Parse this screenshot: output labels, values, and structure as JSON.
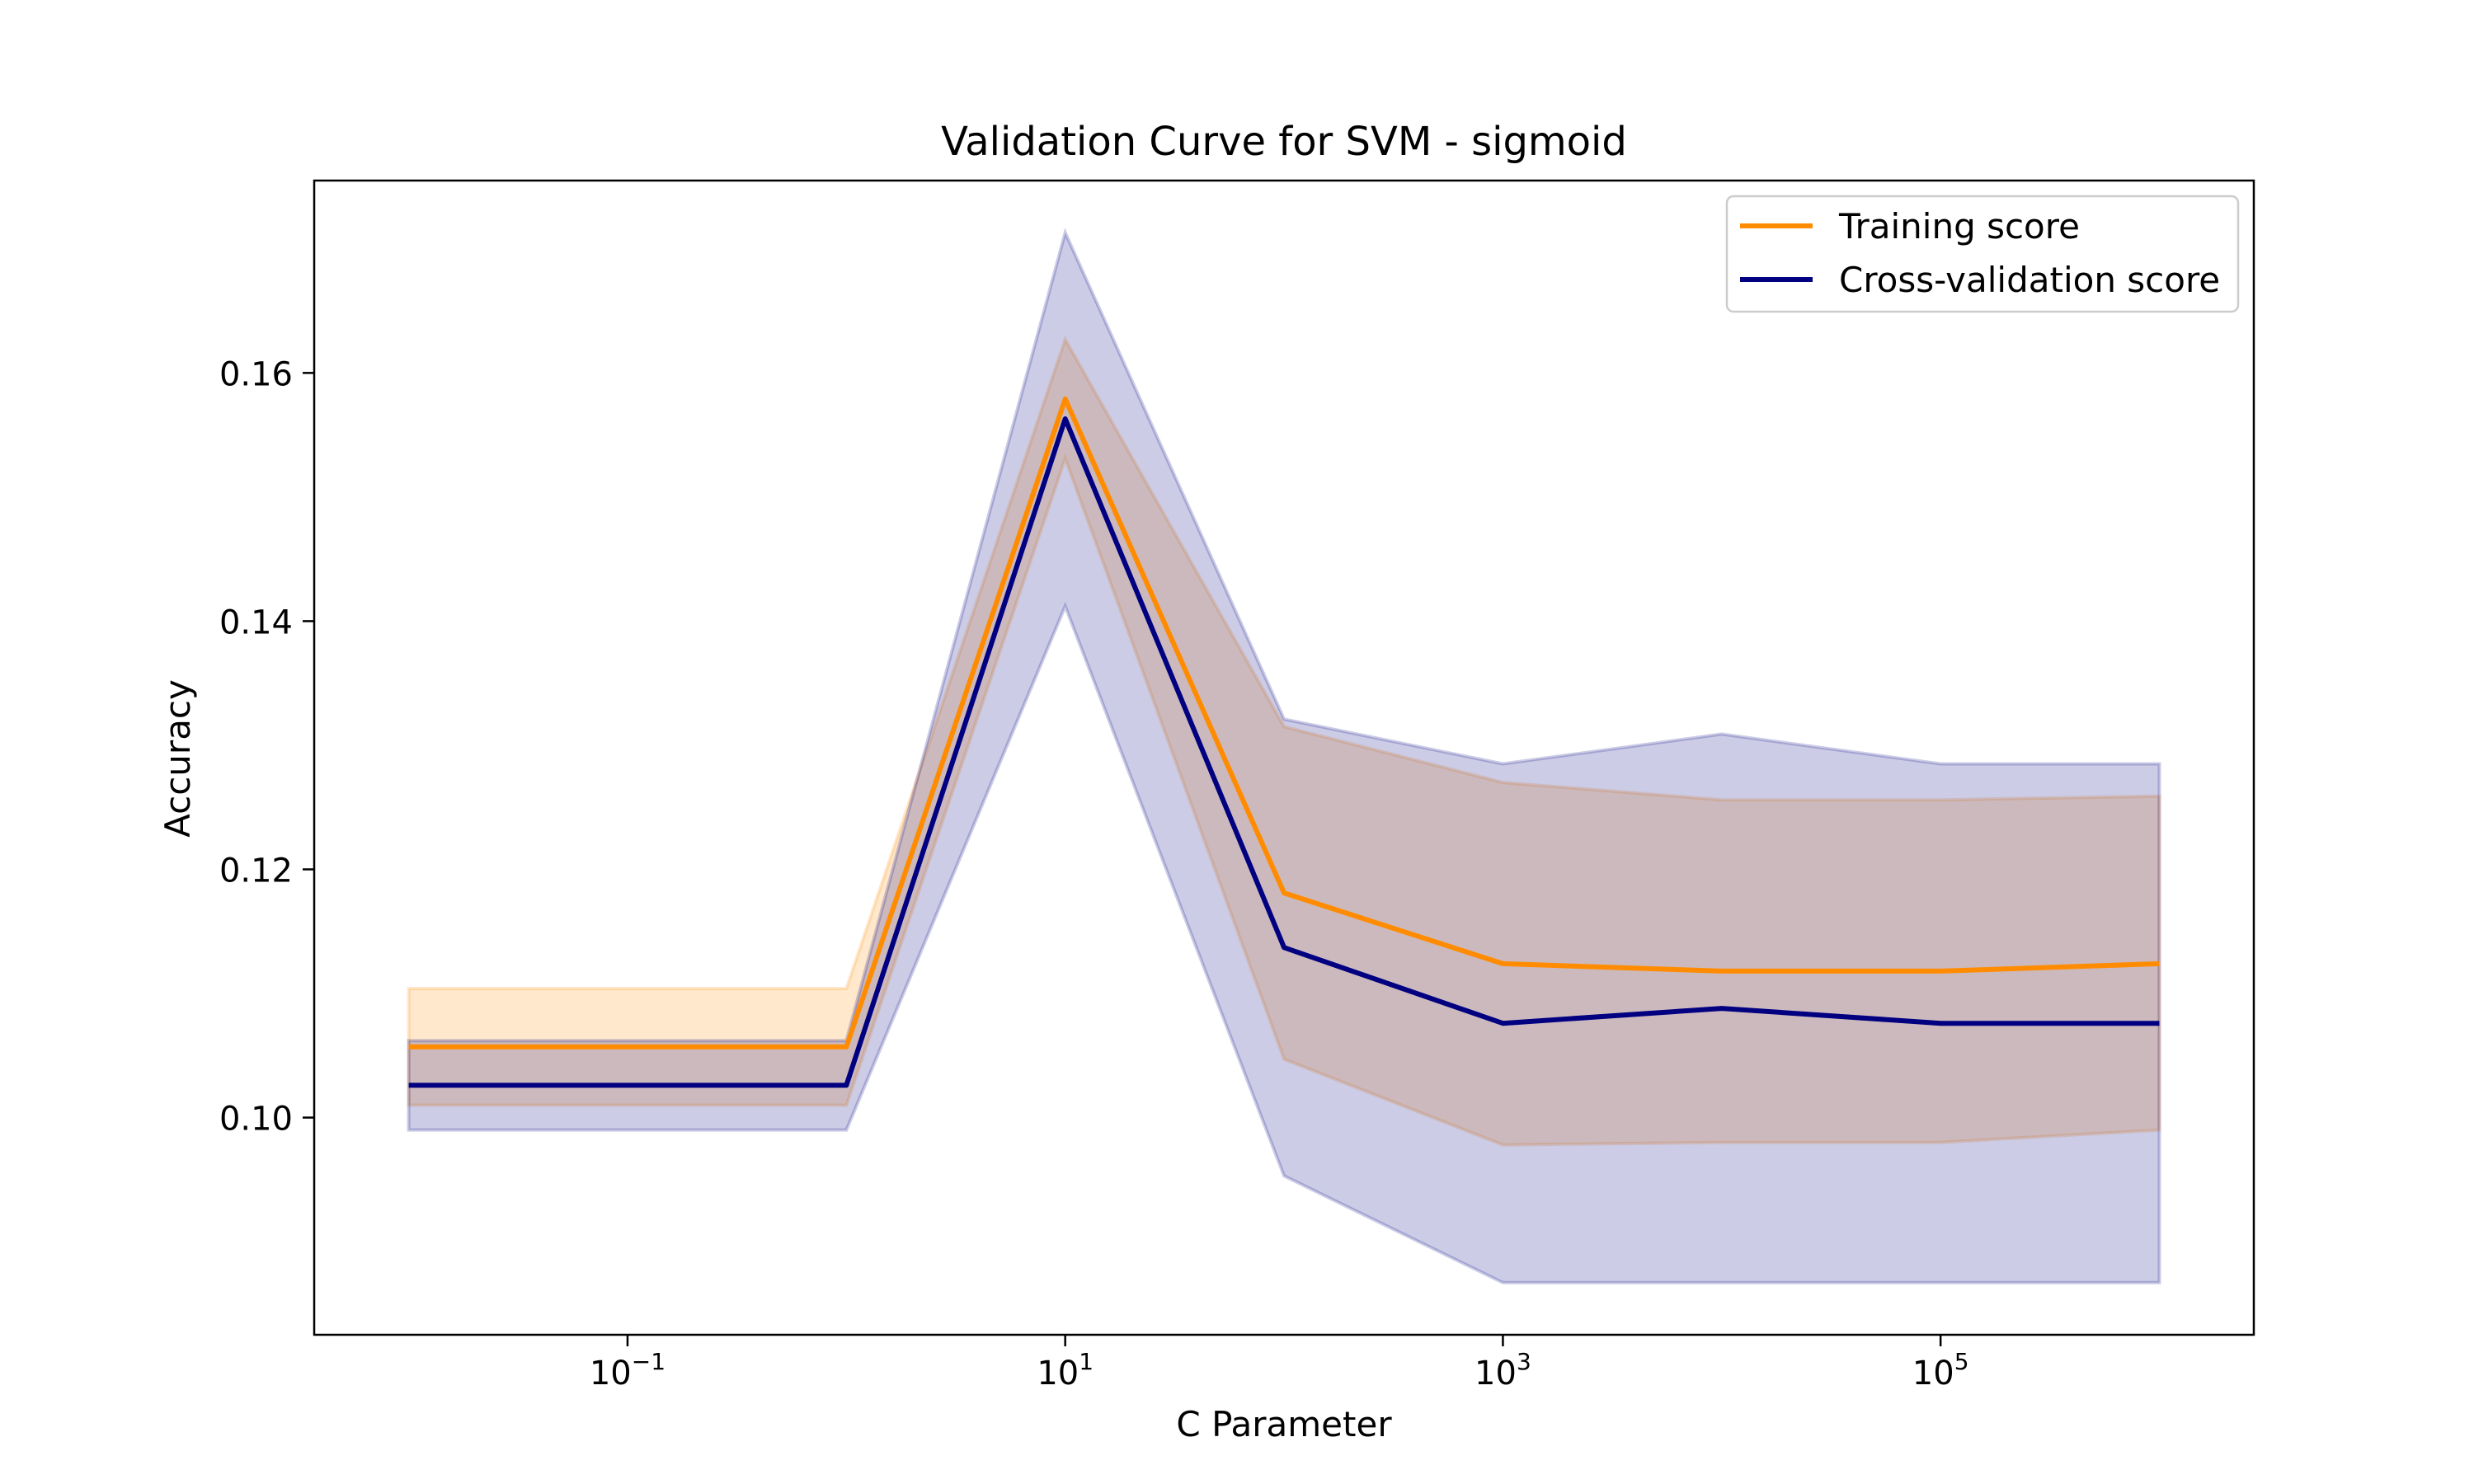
{
  "chart_data": {
    "type": "line",
    "title": "Validation Curve for SVM - sigmoid",
    "xlabel": "C Parameter",
    "ylabel": "Accuracy",
    "x_scale": "log",
    "x": [
      0.01,
      1,
      10,
      100,
      1000,
      10000,
      100000,
      1000000
    ],
    "xlim": [
      0.0037,
      2700000
    ],
    "ylim": [
      0.0825,
      0.1755
    ],
    "x_ticks": [
      {
        "value": 0.1,
        "base": "10",
        "exp": "−1"
      },
      {
        "value": 10,
        "base": "10",
        "exp": "1"
      },
      {
        "value": 1000,
        "base": "10",
        "exp": "3"
      },
      {
        "value": 100000,
        "base": "10",
        "exp": "5"
      }
    ],
    "y_ticks": [
      {
        "value": 0.1,
        "label": "0.10"
      },
      {
        "value": 0.12,
        "label": "0.12"
      },
      {
        "value": 0.14,
        "label": "0.14"
      },
      {
        "value": 0.16,
        "label": "0.16"
      }
    ],
    "grid": false,
    "legend_position": "top-right",
    "series": [
      {
        "name": "Training score",
        "color": "#ff8c00",
        "values": [
          0.1057,
          0.1057,
          0.1579,
          0.1181,
          0.1124,
          0.1118,
          0.1118,
          0.1124
        ],
        "band_upper": [
          0.1104,
          0.1104,
          0.1627,
          0.1315,
          0.127,
          0.1256,
          0.1256,
          0.1259
        ],
        "band_lower": [
          0.101,
          0.101,
          0.1531,
          0.1047,
          0.0978,
          0.098,
          0.098,
          0.099
        ]
      },
      {
        "name": "Cross-validation score",
        "color": "#000080",
        "values": [
          0.1026,
          0.1026,
          0.1563,
          0.1137,
          0.1076,
          0.1088,
          0.1076,
          0.1076
        ],
        "band_upper": [
          0.1062,
          0.1062,
          0.1713,
          0.1321,
          0.1285,
          0.1309,
          0.1285,
          0.1285
        ],
        "band_lower": [
          0.099,
          0.099,
          0.1412,
          0.0953,
          0.0867,
          0.0867,
          0.0867,
          0.0867
        ]
      }
    ]
  }
}
